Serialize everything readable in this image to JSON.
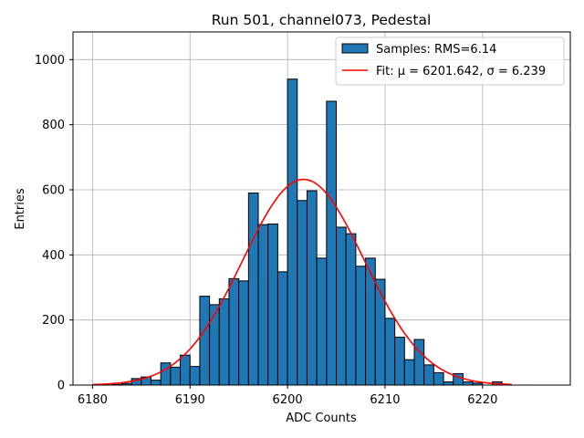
{
  "chart_data": {
    "type": "bar",
    "title": "Run 501, channel073, Pedestal",
    "xlabel": "ADC Counts",
    "ylabel": "Entries",
    "xlim": [
      6178,
      6229
    ],
    "ylim": [
      0,
      1085
    ],
    "grid": true,
    "legend_position": "top-right",
    "x_ticks": [
      6180,
      6190,
      6200,
      6210,
      6220
    ],
    "y_ticks": [
      0,
      200,
      400,
      600,
      800,
      1000
    ],
    "bin_width": 1,
    "histogram": {
      "name": "Samples: RMS=6.14",
      "color": "#1f77b4",
      "edge_color": "#000000",
      "bin_starts": [
        6180,
        6181,
        6182,
        6183,
        6184,
        6185,
        6186,
        6187,
        6188,
        6189,
        6190,
        6191,
        6192,
        6193,
        6194,
        6195,
        6196,
        6197,
        6198,
        6199,
        6200,
        6201,
        6202,
        6203,
        6204,
        6205,
        6206,
        6207,
        6208,
        6209,
        6210,
        6211,
        6212,
        6213,
        6214,
        6215,
        6216,
        6217,
        6218,
        6219,
        6220,
        6221,
        6222
      ],
      "values": [
        0,
        0,
        2,
        5,
        20,
        25,
        15,
        68,
        55,
        92,
        57,
        273,
        247,
        265,
        327,
        320,
        590,
        493,
        495,
        348,
        940,
        567,
        597,
        390,
        872,
        485,
        465,
        365,
        390,
        325,
        205,
        147,
        78,
        140,
        62,
        38,
        10,
        35,
        10,
        6,
        0,
        10,
        0
      ]
    },
    "fit": {
      "name": "Fit: μ = 6201.642, σ = 6.239",
      "color": "#ff0000",
      "mu": 6201.642,
      "sigma": 6.239,
      "amplitude": 632,
      "x_range": [
        6180,
        6223
      ]
    }
  }
}
